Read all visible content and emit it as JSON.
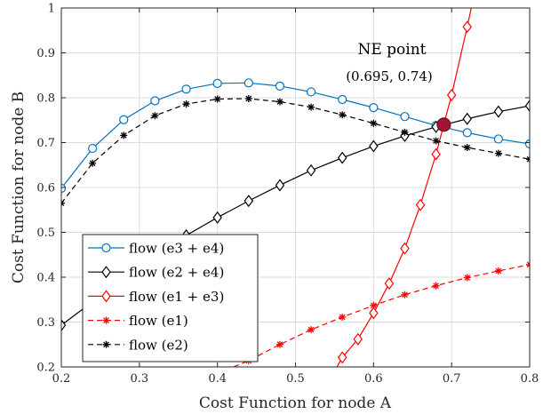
{
  "chart_data": {
    "type": "line",
    "xlabel": "Cost Function for node A",
    "ylabel": "Cost Function for node B",
    "xlim": [
      0.2,
      0.8
    ],
    "ylim": [
      0.2,
      1.0
    ],
    "xticks": [
      "0.2",
      "0.3",
      "0.4",
      "0.5",
      "0.6",
      "0.7",
      "0.8"
    ],
    "yticks": [
      "0.2",
      "0.3",
      "0.4",
      "0.5",
      "0.6",
      "0.7",
      "0.8",
      "0.9",
      "1"
    ],
    "grid": true,
    "legend_position": "bottom-left",
    "annotation": {
      "title": "NE point",
      "coords_text": "(0.695, 0.74)",
      "x": 0.69,
      "y": 0.74,
      "color": "#a2142f"
    },
    "series": [
      {
        "name": "flow (e3 + e4)",
        "color": "#0072bd",
        "line": "solid",
        "marker": "circle",
        "x": [
          0.2,
          0.24,
          0.28,
          0.32,
          0.36,
          0.4,
          0.44,
          0.48,
          0.52,
          0.56,
          0.6,
          0.64,
          0.68,
          0.72,
          0.76,
          0.8
        ],
        "y": [
          0.598,
          0.687,
          0.751,
          0.793,
          0.819,
          0.832,
          0.833,
          0.826,
          0.813,
          0.796,
          0.778,
          0.758,
          0.738,
          0.722,
          0.708,
          0.697
        ]
      },
      {
        "name": "flow (e2 + e4)",
        "color": "#000000",
        "line": "solid",
        "marker": "diamond",
        "x": [
          0.2,
          0.24,
          0.28,
          0.32,
          0.36,
          0.4,
          0.44,
          0.48,
          0.52,
          0.56,
          0.6,
          0.64,
          0.68,
          0.72,
          0.76,
          0.8
        ],
        "y": [
          0.293,
          0.345,
          0.4,
          0.45,
          0.493,
          0.533,
          0.57,
          0.605,
          0.638,
          0.666,
          0.692,
          0.715,
          0.735,
          0.753,
          0.769,
          0.782
        ]
      },
      {
        "name": "flow (e1 + e3)",
        "color": "#ff0000",
        "line": "solid",
        "marker": "diamond",
        "x": [
          0.54,
          0.56,
          0.58,
          0.6,
          0.62,
          0.64,
          0.66,
          0.68,
          0.7,
          0.72,
          0.735
        ],
        "y": [
          0.16,
          0.221,
          0.262,
          0.32,
          0.386,
          0.464,
          0.561,
          0.674,
          0.806,
          0.958,
          1.08
        ]
      },
      {
        "name": "flow (e1)",
        "color": "#ff0000",
        "line": "dashed",
        "marker": "asterisk",
        "x": [
          0.4,
          0.44,
          0.48,
          0.52,
          0.56,
          0.6,
          0.64,
          0.68,
          0.72,
          0.76,
          0.8
        ],
        "y": [
          0.185,
          0.214,
          0.25,
          0.283,
          0.311,
          0.337,
          0.361,
          0.381,
          0.399,
          0.414,
          0.428
        ]
      },
      {
        "name": "flow (e2)",
        "color": "#000000",
        "line": "dashed",
        "marker": "asterisk",
        "x": [
          0.2,
          0.24,
          0.28,
          0.32,
          0.36,
          0.4,
          0.44,
          0.48,
          0.52,
          0.56,
          0.6,
          0.64,
          0.68,
          0.72,
          0.76,
          0.8
        ],
        "y": [
          0.565,
          0.654,
          0.716,
          0.76,
          0.786,
          0.797,
          0.798,
          0.791,
          0.779,
          0.762,
          0.743,
          0.723,
          0.704,
          0.689,
          0.676,
          0.663
        ]
      }
    ]
  }
}
